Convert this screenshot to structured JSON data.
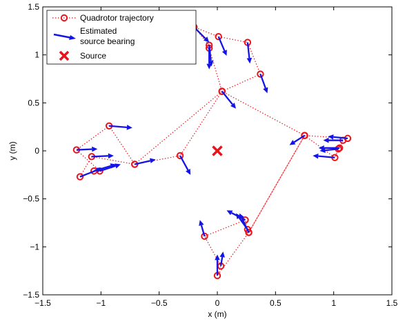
{
  "chart_data": {
    "type": "scatter",
    "xlabel": "x (m)",
    "ylabel": "y (m)",
    "xlim": [
      -1.5,
      1.5
    ],
    "ylim": [
      -1.5,
      1.5
    ],
    "xticks": [
      -1.5,
      -1,
      -0.5,
      0,
      0.5,
      1,
      1.5
    ],
    "yticks": [
      -1.5,
      -1,
      -0.5,
      0,
      0.5,
      1,
      1.5
    ],
    "xtick_labels": [
      "−1.5",
      "−1",
      "−0.5",
      "0",
      "0.5",
      "1",
      "1.5"
    ],
    "ytick_labels": [
      "−1.5",
      "−1",
      "−0.5",
      "0",
      "0.5",
      "1",
      "1.5"
    ],
    "grid": false,
    "legend_position": "top-left",
    "colors": {
      "trajectory": "#e8141c",
      "bearing": "#1414e6",
      "source": "#e8141c"
    },
    "series": [
      {
        "name": "Quadrotor trajectory",
        "marker": "circle",
        "line": "dotted",
        "points": [
          [
            0.04,
            0.62
          ],
          [
            0.37,
            0.8
          ],
          [
            0.26,
            1.13
          ],
          [
            0.01,
            1.19
          ],
          [
            -0.2,
            1.29
          ],
          [
            -0.07,
            1.1
          ],
          [
            -0.07,
            1.07
          ],
          [
            0.04,
            0.62
          ],
          [
            -0.32,
            -0.05
          ],
          [
            -0.71,
            -0.14
          ],
          [
            -0.93,
            0.26
          ],
          [
            -1.21,
            0.01
          ],
          [
            -1.01,
            -0.21
          ],
          [
            -1.06,
            -0.21
          ],
          [
            -1.18,
            -0.27
          ],
          [
            -1.08,
            -0.06
          ],
          [
            -0.71,
            -0.14
          ],
          [
            0.04,
            0.62
          ],
          [
            0.75,
            0.16
          ],
          [
            1.12,
            0.13
          ],
          [
            1.08,
            0.11
          ],
          [
            1.05,
            0.03
          ],
          [
            1.04,
            0.02
          ],
          [
            1.01,
            -0.07
          ],
          [
            0.75,
            0.16
          ],
          [
            0.27,
            -0.85
          ],
          [
            0.26,
            -0.82
          ],
          [
            0.24,
            -0.72
          ],
          [
            -0.11,
            -0.89
          ],
          [
            0.03,
            -1.2
          ],
          [
            0.0,
            -1.3
          ],
          [
            0.27,
            -0.85
          ],
          [
            0.75,
            0.16
          ]
        ]
      },
      {
        "name": "Estimated source bearing",
        "marker": "arrow",
        "arrows": [
          {
            "x": 0.04,
            "y": 0.62,
            "dx": 0.12,
            "dy": -0.18
          },
          {
            "x": 0.37,
            "y": 0.8,
            "dx": 0.06,
            "dy": -0.2
          },
          {
            "x": 0.26,
            "y": 1.13,
            "dx": 0.02,
            "dy": -0.22
          },
          {
            "x": 0.01,
            "y": 1.19,
            "dx": 0.07,
            "dy": -0.2
          },
          {
            "x": -0.2,
            "y": 1.29,
            "dx": 0.13,
            "dy": -0.16
          },
          {
            "x": -0.07,
            "y": 1.1,
            "dx": 0.02,
            "dy": -0.22
          },
          {
            "x": -0.07,
            "y": 1.07,
            "dx": 0.0,
            "dy": -0.22
          },
          {
            "x": -0.32,
            "y": -0.05,
            "dx": 0.09,
            "dy": -0.2
          },
          {
            "x": -0.71,
            "y": -0.14,
            "dx": 0.18,
            "dy": 0.05
          },
          {
            "x": -0.93,
            "y": 0.26,
            "dx": 0.2,
            "dy": -0.02
          },
          {
            "x": -1.21,
            "y": 0.01,
            "dx": 0.18,
            "dy": 0.01
          },
          {
            "x": -1.01,
            "y": -0.21,
            "dx": 0.18,
            "dy": 0.07
          },
          {
            "x": -1.06,
            "y": -0.21,
            "dx": 0.19,
            "dy": 0.07
          },
          {
            "x": -1.18,
            "y": -0.27,
            "dx": 0.19,
            "dy": 0.09
          },
          {
            "x": -1.08,
            "y": -0.06,
            "dx": 0.19,
            "dy": 0.01
          },
          {
            "x": 0.75,
            "y": 0.16,
            "dx": -0.13,
            "dy": -0.1
          },
          {
            "x": 1.12,
            "y": 0.13,
            "dx": -0.17,
            "dy": 0.02
          },
          {
            "x": 1.08,
            "y": 0.11,
            "dx": -0.17,
            "dy": 0.0
          },
          {
            "x": 1.05,
            "y": 0.03,
            "dx": -0.18,
            "dy": 0.0
          },
          {
            "x": 1.04,
            "y": 0.02,
            "dx": -0.16,
            "dy": -0.02
          },
          {
            "x": 1.01,
            "y": -0.07,
            "dx": -0.19,
            "dy": 0.02
          },
          {
            "x": 0.27,
            "y": -0.85,
            "dx": -0.08,
            "dy": 0.2
          },
          {
            "x": 0.26,
            "y": -0.82,
            "dx": -0.1,
            "dy": 0.17
          },
          {
            "x": 0.24,
            "y": -0.72,
            "dx": -0.16,
            "dy": 0.1
          },
          {
            "x": -0.11,
            "y": -0.89,
            "dx": -0.04,
            "dy": 0.17
          },
          {
            "x": 0.03,
            "y": -1.2,
            "dx": 0.02,
            "dy": 0.15
          },
          {
            "x": 0.0,
            "y": -1.3,
            "dx": 0.0,
            "dy": 0.22
          }
        ]
      },
      {
        "name": "Source",
        "marker": "x",
        "points": [
          [
            0.0,
            0.0
          ]
        ]
      }
    ],
    "legend": {
      "trajectory_label": "Quadrotor trajectory",
      "bearing_label_line1": "Estimated",
      "bearing_label_line2": "source bearing",
      "source_label": "Source"
    }
  }
}
